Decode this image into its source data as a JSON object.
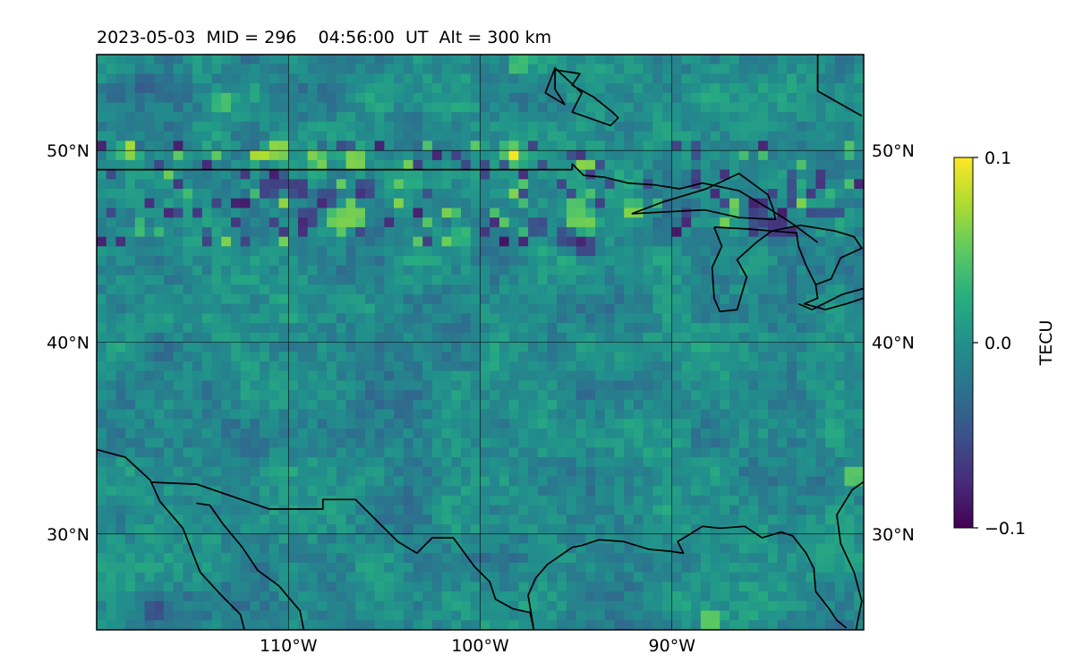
{
  "chart_data": {
    "type": "heatmap",
    "title": "2023-05-03  MID = 296    04:56:00  UT  Alt = 300 km",
    "xlabel": "",
    "ylabel": "",
    "projection": "plate-carree map",
    "xlim": [
      -120,
      -80
    ],
    "ylim": [
      25,
      55
    ],
    "x_ticks": [
      {
        "value": -110,
        "label": "110°W"
      },
      {
        "value": -100,
        "label": "100°W"
      },
      {
        "value": -90,
        "label": "90°W"
      }
    ],
    "y_ticks": [
      {
        "value": 50,
        "label": "50°N"
      },
      {
        "value": 40,
        "label": "40°N"
      },
      {
        "value": 30,
        "label": "30°N"
      }
    ],
    "grid": true,
    "colormap": "viridis",
    "colorbar": {
      "label": "TECU",
      "range": [
        -0.1,
        0.1
      ],
      "ticks": [
        {
          "value": 0.1,
          "label": "0.1"
        },
        {
          "value": 0.0,
          "label": "0.0"
        },
        {
          "value": -0.1,
          "label": "−0.1"
        }
      ]
    },
    "cell_size_deg": 0.5,
    "background_value": -0.005,
    "notable_features": [
      {
        "lon": -118.3,
        "lat": 50.0,
        "value": 0.1
      },
      {
        "lon": -111.5,
        "lat": 49.7,
        "value": 0.1
      },
      {
        "lon": -110.5,
        "lat": 50.0,
        "value": 0.1
      },
      {
        "lon": -108.5,
        "lat": 49.5,
        "value": 0.1
      },
      {
        "lon": -106.5,
        "lat": 49.5,
        "value": 0.1
      },
      {
        "lon": -98.3,
        "lat": 49.8,
        "value": 0.1
      },
      {
        "lon": -106.5,
        "lat": 46.5,
        "value": 0.1
      },
      {
        "lon": -107.5,
        "lat": 46.5,
        "value": 0.09
      },
      {
        "lon": -110.5,
        "lat": 48.5,
        "value": -0.1
      },
      {
        "lon": -109.5,
        "lat": 48.0,
        "value": -0.1
      },
      {
        "lon": -108.0,
        "lat": 47.5,
        "value": -0.09
      },
      {
        "lon": -109.0,
        "lat": 46.5,
        "value": -0.09
      },
      {
        "lon": -106.0,
        "lat": 48.0,
        "value": -0.08
      },
      {
        "lon": -97.0,
        "lat": 46.0,
        "value": -0.08
      },
      {
        "lon": -95.5,
        "lat": 45.5,
        "value": -0.09
      },
      {
        "lon": -94.5,
        "lat": 45.0,
        "value": -0.09
      },
      {
        "lon": -84.5,
        "lat": 46.0,
        "value": -0.1
      },
      {
        "lon": -85.5,
        "lat": 46.5,
        "value": -0.09
      },
      {
        "lon": -117.0,
        "lat": 26.0,
        "value": -0.07
      },
      {
        "lon": -117.5,
        "lat": 53.5,
        "value": -0.05
      },
      {
        "lon": -113.5,
        "lat": 52.5,
        "value": 0.06
      },
      {
        "lon": -98.0,
        "lat": 54.5,
        "value": 0.06
      },
      {
        "lon": -88.0,
        "lat": 25.5,
        "value": 0.08
      },
      {
        "lon": -80.5,
        "lat": 33.0,
        "value": 0.08
      },
      {
        "lon": -101.0,
        "lat": 45.5,
        "value": 0.05
      },
      {
        "lon": -95.0,
        "lat": 47.0,
        "value": 0.07
      },
      {
        "lon": -92.0,
        "lat": 46.8,
        "value": 0.08
      },
      {
        "lon": -94.5,
        "lat": 46.2,
        "value": 0.07
      }
    ],
    "coastlines": [
      [
        [
          -96.1,
          54.2
        ],
        [
          -94.8,
          54.0
        ],
        [
          -95.2,
          53.4
        ],
        [
          -94.1,
          52.8
        ],
        [
          -93.1,
          52.0
        ],
        [
          -92.8,
          51.7
        ],
        [
          -93.2,
          51.3
        ],
        [
          -95.2,
          52.0
        ],
        [
          -94.7,
          53.0
        ],
        [
          -96.1,
          54.3
        ],
        [
          -96.6,
          53.0
        ],
        [
          -95.6,
          52.4
        ],
        [
          -96.1,
          53.2
        ],
        [
          -96.1,
          54.2
        ]
      ],
      [
        [
          -82.4,
          55
        ],
        [
          -82.4,
          53.1
        ],
        [
          -80.1,
          51.8
        ]
      ],
      [
        [
          -120,
          34.4
        ],
        [
          -118.5,
          34.0
        ],
        [
          -117.2,
          32.8
        ],
        [
          -116.7,
          31.7
        ],
        [
          -115.5,
          30.3
        ],
        [
          -114.6,
          28.0
        ],
        [
          -113.5,
          26.8
        ],
        [
          -112.5,
          25.8
        ],
        [
          -112.3,
          25.0
        ]
      ],
      [
        [
          -117.2,
          32.7
        ],
        [
          -114.8,
          32.6
        ],
        [
          -111.0,
          31.3
        ],
        [
          -108.2,
          31.3
        ],
        [
          -108.2,
          31.8
        ],
        [
          -106.5,
          31.8
        ],
        [
          -104.3,
          29.6
        ],
        [
          -103.3,
          29.0
        ],
        [
          -102.5,
          29.8
        ],
        [
          -101.4,
          29.8
        ],
        [
          -100.3,
          28.3
        ],
        [
          -99.5,
          27.5
        ],
        [
          -99.2,
          26.6
        ],
        [
          -98.3,
          26.1
        ],
        [
          -97.4,
          25.9
        ],
        [
          -97.2,
          25.0
        ]
      ],
      [
        [
          -97.2,
          25.0
        ],
        [
          -97.5,
          26.8
        ],
        [
          -97.1,
          27.7
        ],
        [
          -96.5,
          28.4
        ],
        [
          -95.2,
          29.3
        ],
        [
          -94.7,
          29.4
        ],
        [
          -93.8,
          29.7
        ],
        [
          -92.5,
          29.6
        ],
        [
          -91.2,
          29.2
        ],
        [
          -90.1,
          29.1
        ],
        [
          -89.4,
          29.0
        ],
        [
          -89.7,
          29.6
        ],
        [
          -88.4,
          30.4
        ],
        [
          -87.5,
          30.3
        ],
        [
          -86.2,
          30.4
        ],
        [
          -85.3,
          29.8
        ],
        [
          -84.3,
          30.1
        ],
        [
          -83.7,
          29.9
        ],
        [
          -83.0,
          29.0
        ],
        [
          -82.6,
          28.2
        ],
        [
          -82.5,
          27.0
        ],
        [
          -81.8,
          26.1
        ],
        [
          -81.4,
          25.5
        ],
        [
          -80.9,
          25.1
        ]
      ],
      [
        [
          -114.8,
          31.6
        ],
        [
          -114.1,
          31.5
        ],
        [
          -113.4,
          30.5
        ],
        [
          -112.4,
          29.3
        ],
        [
          -111.6,
          28.1
        ],
        [
          -110.5,
          27.3
        ],
        [
          -109.4,
          26.0
        ],
        [
          -109.2,
          25.0
        ]
      ],
      [
        [
          -80.4,
          25.0
        ],
        [
          -80.1,
          26.5
        ],
        [
          -80.5,
          28.0
        ],
        [
          -81.2,
          29.5
        ],
        [
          -81.4,
          31.0
        ],
        [
          -80.6,
          32.3
        ],
        [
          -79.6,
          33.0
        ]
      ],
      [
        [
          -120,
          49
        ],
        [
          -95.2,
          49
        ],
        [
          -95.2,
          49.3
        ],
        [
          -94.6,
          48.7
        ],
        [
          -93.5,
          48.6
        ],
        [
          -92.3,
          48.3
        ],
        [
          -90.9,
          48.2
        ],
        [
          -89.6,
          48.0
        ],
        [
          -88.4,
          48.3
        ],
        [
          -86.5,
          47.9
        ],
        [
          -85.0,
          47.0
        ],
        [
          -84.2,
          46.5
        ],
        [
          -83.6,
          46.1
        ],
        [
          -82.4,
          45.2
        ]
      ],
      [
        [
          -92.1,
          46.7
        ],
        [
          -90.5,
          47.3
        ],
        [
          -88.2,
          48.0
        ],
        [
          -86.5,
          48.8
        ],
        [
          -85.0,
          47.7
        ],
        [
          -84.7,
          46.9
        ],
        [
          -84.6,
          46.4
        ],
        [
          -86.5,
          46.5
        ],
        [
          -88.3,
          46.9
        ],
        [
          -90.3,
          46.8
        ],
        [
          -92.1,
          46.7
        ]
      ],
      [
        [
          -87.8,
          46.0
        ],
        [
          -87.4,
          45.0
        ],
        [
          -87.9,
          43.9
        ],
        [
          -87.8,
          42.3
        ],
        [
          -87.5,
          41.6
        ],
        [
          -86.6,
          41.7
        ],
        [
          -86.1,
          43.4
        ],
        [
          -86.6,
          44.3
        ],
        [
          -85.6,
          45.2
        ],
        [
          -84.8,
          45.8
        ],
        [
          -86.0,
          45.9
        ],
        [
          -87.8,
          46.0
        ]
      ],
      [
        [
          -84.8,
          45.8
        ],
        [
          -83.5,
          45.7
        ],
        [
          -83.4,
          45.0
        ],
        [
          -83.0,
          44.0
        ],
        [
          -82.5,
          43.0
        ],
        [
          -82.4,
          42.3
        ],
        [
          -83.1,
          42.0
        ],
        [
          -82.0,
          41.7
        ],
        [
          -80.9,
          42.0
        ],
        [
          -80.0,
          42.3
        ]
      ],
      [
        [
          -82.5,
          43.0
        ],
        [
          -81.7,
          43.3
        ],
        [
          -81.2,
          44.4
        ],
        [
          -80.1,
          44.9
        ],
        [
          -80.5,
          45.5
        ],
        [
          -81.5,
          45.8
        ],
        [
          -83.3,
          46.1
        ],
        [
          -84.8,
          45.8
        ]
      ],
      [
        [
          -80.0,
          42.8
        ],
        [
          -81.1,
          42.5
        ],
        [
          -82.7,
          41.7
        ],
        [
          -83.4,
          42.0
        ]
      ]
    ]
  }
}
